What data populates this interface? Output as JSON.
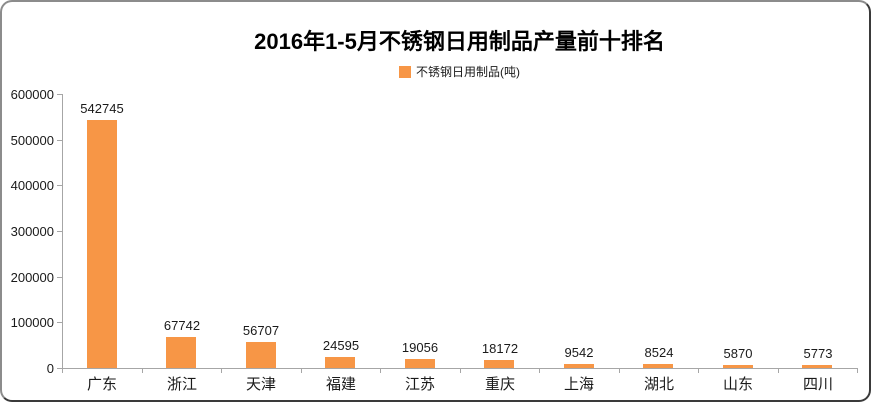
{
  "title": "2016年1-5月不锈钢日用制品产量前十排名",
  "legend": {
    "label": "不锈钢日用制品(吨)"
  },
  "colors": {
    "bar": "#F79646",
    "axis": "#A6A6A6",
    "text": "#1a1a1a",
    "frame_border_light": "#8c8c8c",
    "frame_border_dark": "#3a3a3a",
    "background": "#ffffff"
  },
  "chart_data": {
    "type": "bar",
    "title": "2016年1-5月不锈钢日用制品产量前十排名",
    "series_name": "不锈钢日用制品(吨)",
    "categories": [
      "广东",
      "浙江",
      "天津",
      "福建",
      "江苏",
      "重庆",
      "上海",
      "湖北",
      "山东",
      "四川"
    ],
    "values": [
      542745,
      67742,
      56707,
      24595,
      19056,
      18172,
      9542,
      8524,
      5870,
      5773
    ],
    "data_labels": [
      "542745",
      "67742",
      "56707",
      "24595",
      "19056",
      "18172",
      "9542",
      "8524",
      "5870",
      "5773"
    ],
    "xlabel": "",
    "ylabel": "",
    "ylim": [
      0,
      600000
    ],
    "ytick_interval": 100000,
    "yticks": [
      0,
      100000,
      200000,
      300000,
      400000,
      500000,
      600000
    ],
    "ytick_labels": [
      "0",
      "100000",
      "200000",
      "300000",
      "400000",
      "500000",
      "600000"
    ],
    "grid": false,
    "legend_position": "top"
  }
}
